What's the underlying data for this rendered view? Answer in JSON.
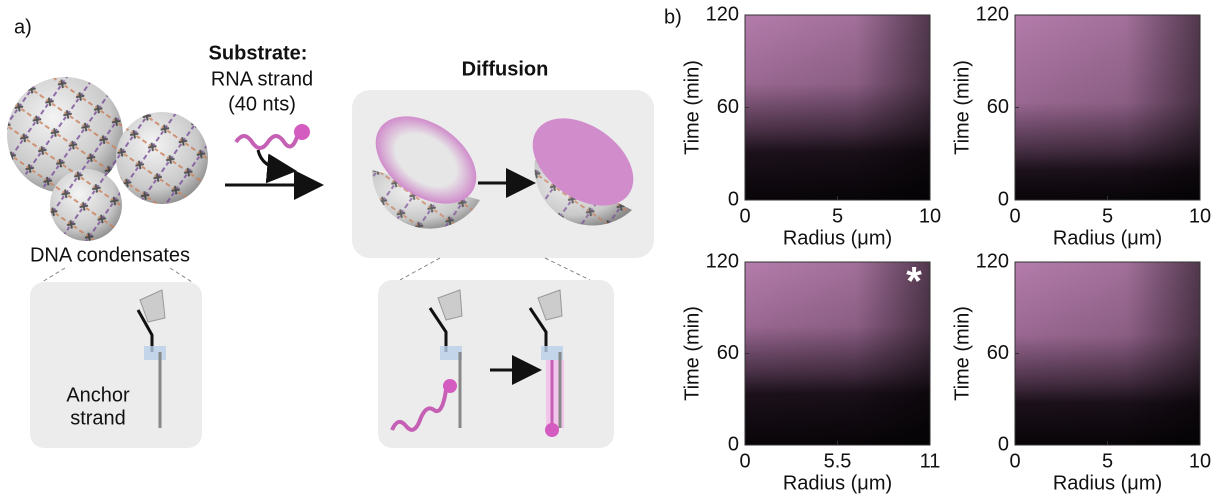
{
  "panel_a": {
    "label": "a)",
    "substrate_title": "Substrate:",
    "substrate_lines": [
      "RNA strand",
      "(40 nts)"
    ],
    "condensates_label": "DNA condensates",
    "anchor_lines": [
      "Anchor",
      "strand"
    ],
    "diffusion_title": "Diffusion"
  },
  "panel_b": {
    "label": "b)",
    "plots": [
      {
        "xlabel": "Radius (μm)",
        "ylabel": "Time (min)",
        "xlim": [
          0,
          10
        ],
        "ylim": [
          0,
          120
        ],
        "xticks": [
          0,
          5,
          10
        ],
        "yticks": [
          0,
          60,
          120
        ]
      },
      {
        "xlabel": "Radius (μm)",
        "ylabel": "Time (min)",
        "xlim": [
          0,
          10
        ],
        "ylim": [
          0,
          120
        ],
        "xticks": [
          0,
          5,
          10
        ],
        "yticks": [
          0,
          60,
          120
        ]
      },
      {
        "xlabel": "Radius (μm)",
        "ylabel": "Time (min)",
        "xlim": [
          0,
          11
        ],
        "ylim": [
          0,
          120
        ],
        "xticks": [
          0,
          5.5,
          11
        ],
        "yticks": [
          0,
          60,
          120
        ],
        "annotation": "*"
      },
      {
        "xlabel": "Radius (μm)",
        "ylabel": "Time (min)",
        "xlim": [
          0,
          10
        ],
        "ylim": [
          0,
          120
        ],
        "xticks": [
          0,
          5,
          10
        ],
        "yticks": [
          0,
          60,
          120
        ]
      }
    ]
  }
}
